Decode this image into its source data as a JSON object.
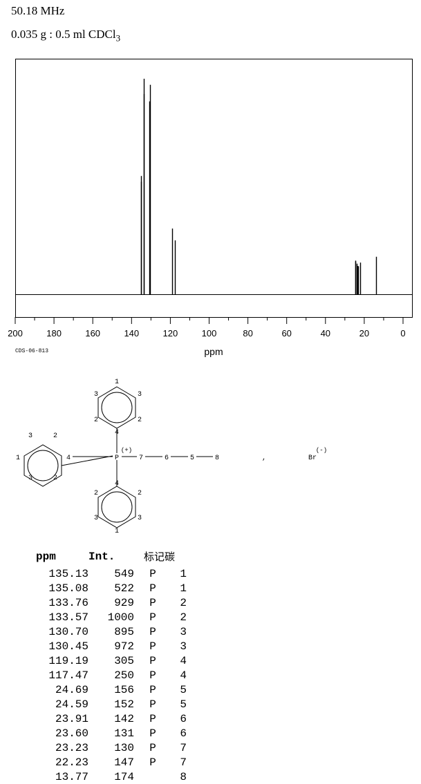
{
  "header": {
    "frequency": "50.18 MHz",
    "sample_prefix": "0.035 g : 0.5 ml CDCl",
    "sample_subscript": "3"
  },
  "chart_data": {
    "type": "line",
    "title": "",
    "xlabel": "ppm",
    "ylabel": "",
    "xlim": [
      200,
      0
    ],
    "x_reversed": true,
    "ylim": [
      0,
      1000
    ],
    "grid": false,
    "x_ticks": [
      200,
      180,
      160,
      140,
      120,
      100,
      80,
      60,
      40,
      20,
      0
    ],
    "peaks": [
      {
        "ppm": 135.13,
        "int": 549
      },
      {
        "ppm": 135.08,
        "int": 522
      },
      {
        "ppm": 133.76,
        "int": 929
      },
      {
        "ppm": 133.57,
        "int": 1000
      },
      {
        "ppm": 130.7,
        "int": 895
      },
      {
        "ppm": 130.45,
        "int": 972
      },
      {
        "ppm": 119.19,
        "int": 305
      },
      {
        "ppm": 117.47,
        "int": 250
      },
      {
        "ppm": 24.69,
        "int": 156
      },
      {
        "ppm": 24.59,
        "int": 152
      },
      {
        "ppm": 23.91,
        "int": 142
      },
      {
        "ppm": 23.6,
        "int": 131
      },
      {
        "ppm": 23.23,
        "int": 130
      },
      {
        "ppm": 22.23,
        "int": 147
      },
      {
        "ppm": 13.77,
        "int": 174
      }
    ]
  },
  "code": "CDS-06-813",
  "structure": {
    "phosphorus": "P",
    "charge_plus": "(+)",
    "counterion": "Br",
    "charge_minus": "(-)",
    "separator": ",",
    "top_ring": [
      "1",
      "3",
      "3",
      "2",
      "2",
      "4"
    ],
    "left_ring": [
      "3",
      "2",
      "1",
      "4",
      "3",
      "2"
    ],
    "bottom_ring": [
      "4",
      "2",
      "2",
      "3",
      "3",
      "1"
    ],
    "chain": [
      "7",
      "6",
      "5",
      "8"
    ]
  },
  "table": {
    "headers": [
      "ppm",
      "Int.",
      "标记碳"
    ],
    "rows": [
      [
        "135.13",
        "549",
        "P",
        "1"
      ],
      [
        "135.08",
        "522",
        "P",
        "1"
      ],
      [
        "133.76",
        "929",
        "P",
        "2"
      ],
      [
        "133.57",
        "1000",
        "P",
        "2"
      ],
      [
        "130.70",
        "895",
        "P",
        "3"
      ],
      [
        "130.45",
        "972",
        "P",
        "3"
      ],
      [
        "119.19",
        "305",
        "P",
        "4"
      ],
      [
        "117.47",
        "250",
        "P",
        "4"
      ],
      [
        "24.69",
        "156",
        "P",
        "5"
      ],
      [
        "24.59",
        "152",
        "P",
        "5"
      ],
      [
        "23.91",
        "142",
        "P",
        "6"
      ],
      [
        "23.60",
        "131",
        "P",
        "6"
      ],
      [
        "23.23",
        "130",
        "P",
        "7"
      ],
      [
        "22.23",
        "147",
        "P",
        "7"
      ],
      [
        "13.77",
        "174",
        "",
        "8"
      ]
    ]
  }
}
